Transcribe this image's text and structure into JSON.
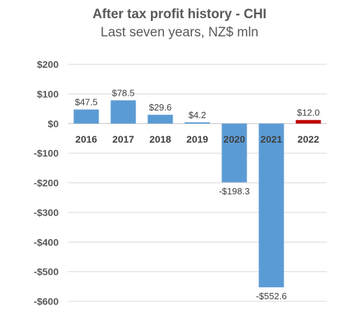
{
  "chart_data": {
    "type": "bar",
    "title": "After tax profit history - CHI",
    "subtitle": "Last seven years, NZ$ mln",
    "categories": [
      "2016",
      "2017",
      "2018",
      "2019",
      "2020",
      "2021",
      "2022"
    ],
    "values": [
      47.5,
      78.5,
      29.6,
      4.2,
      -198.3,
      -552.6,
      12.0
    ],
    "data_labels": [
      "$47.5",
      "$78.5",
      "$29.6",
      "$4.2",
      "-$198.3",
      "-$552.6",
      "$12.0"
    ],
    "ylim": [
      -600,
      200
    ],
    "yticks": [
      200,
      100,
      0,
      -100,
      -200,
      -300,
      -400,
      -500,
      -600
    ],
    "ytick_labels": [
      "$200",
      "$100",
      "$0",
      "-$100",
      "-$200",
      "-$300",
      "-$400",
      "-$500",
      "-$600"
    ],
    "grid": true,
    "colors": {
      "default_bar": "#5B9BD5",
      "highlight_bar": "#C00000",
      "grid": "#D9D9D9"
    },
    "highlight_category": "2022"
  }
}
